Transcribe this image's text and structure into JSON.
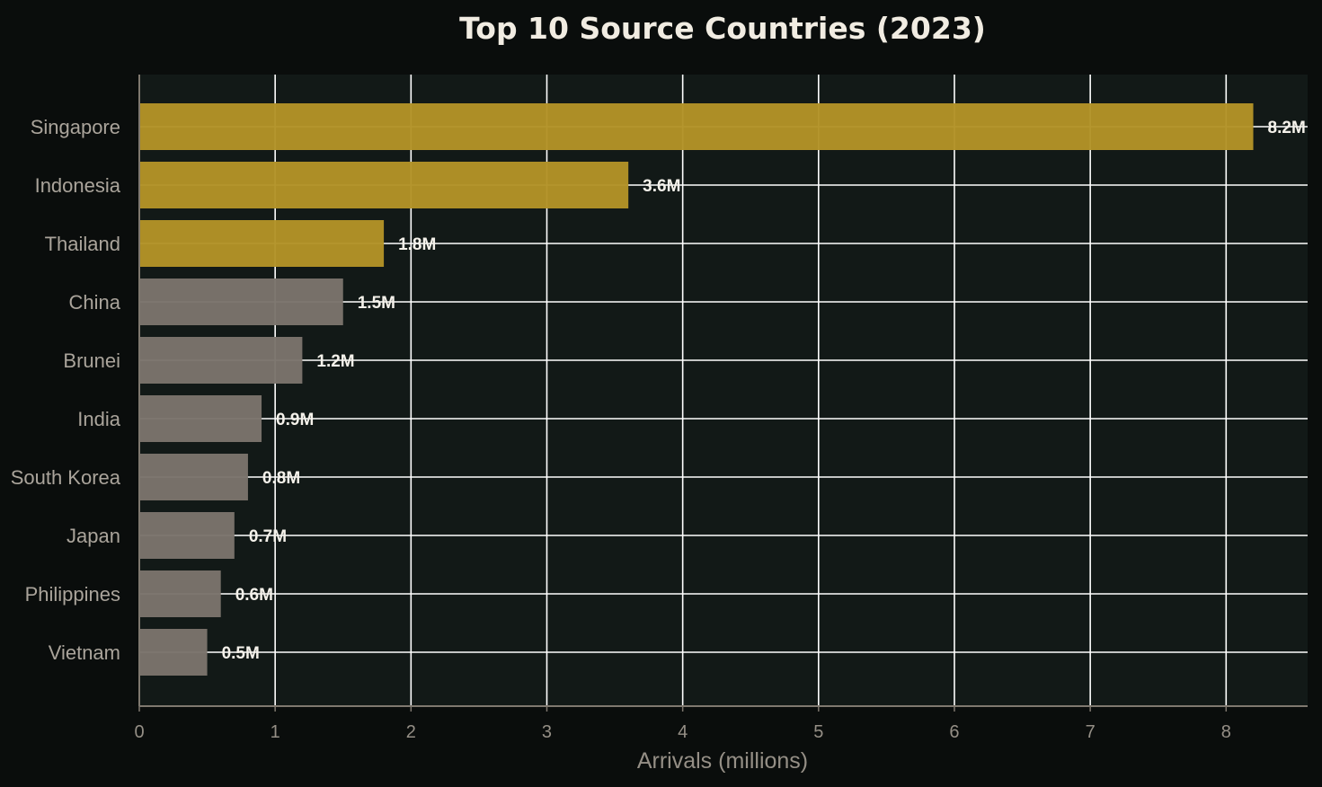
{
  "chart_data": {
    "type": "bar",
    "orientation": "horizontal",
    "title": "Top 10 Source Countries (2023)",
    "xlabel": "Arrivals (millions)",
    "ylabel": "",
    "xlim": [
      0,
      8.6
    ],
    "xticks": [
      "0",
      "1",
      "2",
      "3",
      "4",
      "5",
      "6",
      "7",
      "8"
    ],
    "categories": [
      "Singapore",
      "Indonesia",
      "Thailand",
      "China",
      "Brunei",
      "India",
      "South Korea",
      "Japan",
      "Philippines",
      "Vietnam"
    ],
    "values": [
      8.2,
      3.6,
      1.8,
      1.5,
      1.2,
      0.9,
      0.8,
      0.7,
      0.6,
      0.5
    ],
    "value_labels": [
      "8.2M",
      "3.6M",
      "1.8M",
      "1.5M",
      "1.2M",
      "0.9M",
      "0.8M",
      "0.7M",
      "0.6M",
      "0.5M"
    ],
    "highlighted_count": 3,
    "grid": true,
    "colors": {
      "background": "#0a0d0c",
      "plot_background": "#121917",
      "highlight_bar": "#b39327",
      "bar": "#7b746c",
      "grid": "#ffffff",
      "axis": "#7f786f"
    }
  }
}
